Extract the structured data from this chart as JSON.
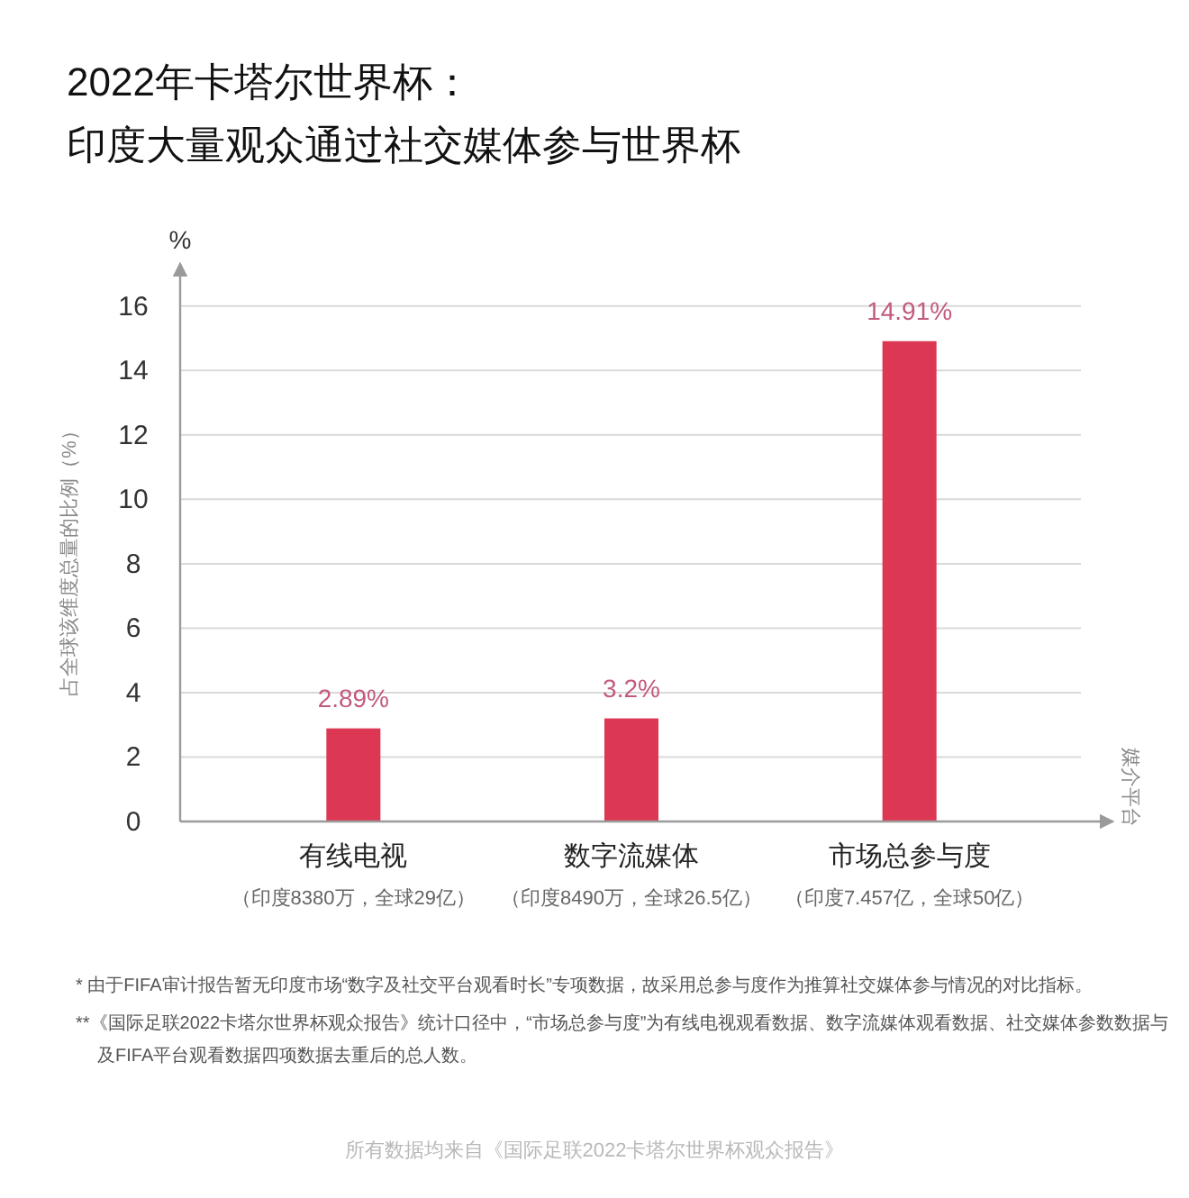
{
  "chart_data": {
    "type": "bar",
    "title": "2022年卡塔尔世界杯：",
    "subtitle": "印度大量观众通过社交媒体参与世界杯",
    "ylabel": "占全球该维度总量的比例（%）",
    "categories": [
      "有线电视",
      "数字流媒体",
      "市场总参与度"
    ],
    "values": [
      2.89,
      3.2,
      14.91
    ],
    "color": "#dc3753",
    "value_labels": [
      "2.89%",
      "3.2%",
      "14.91%"
    ],
    "ylim": [
      0,
      17
    ],
    "yticks": [
      0,
      2,
      4,
      6,
      8,
      10,
      12,
      14,
      16
    ],
    "grid": "y",
    "annotations": [
      "%",
      "媒介平台",
      "（印度8380万，全球29亿）",
      "（印度8490万，全球26.5亿）",
      "（印度7.457亿，全球50亿）",
      "* 由于FIFA审计报告暂无印度市场“数字及社交平台观看时长”专项数据，故采用总参与度作为推算社交媒体参与情况的对比指标。",
      "**《国际足联2022卡塔尔世界杯观众报告》统计口径中，“市场总参与度”为有线电视观看数据、数字流媒体观看数据、社交媒体参数数据与及FIFA平台观看数据四项数据去重后的总人数。",
      "所有数据均来自《国际足联2022卡塔尔世界杯观众报告》"
    ]
  }
}
